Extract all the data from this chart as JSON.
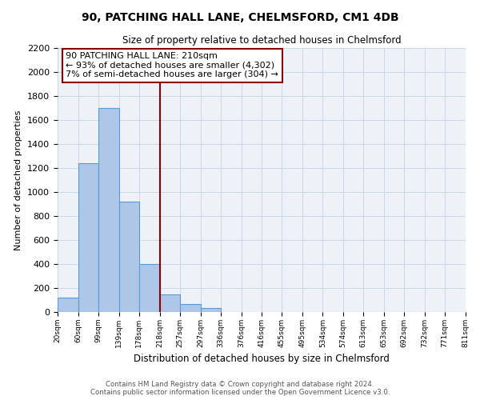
{
  "title": "90, PATCHING HALL LANE, CHELMSFORD, CM1 4DB",
  "subtitle": "Size of property relative to detached houses in Chelmsford",
  "xlabel": "Distribution of detached houses by size in Chelmsford",
  "ylabel": "Number of detached properties",
  "bin_edges": [
    20,
    60,
    99,
    139,
    178,
    218,
    257,
    297,
    336,
    376,
    416,
    455,
    495,
    534,
    574,
    613,
    653,
    692,
    732,
    771,
    811
  ],
  "bin_labels": [
    "20sqm",
    "60sqm",
    "99sqm",
    "139sqm",
    "178sqm",
    "218sqm",
    "257sqm",
    "297sqm",
    "336sqm",
    "376sqm",
    "416sqm",
    "455sqm",
    "495sqm",
    "534sqm",
    "574sqm",
    "613sqm",
    "653sqm",
    "692sqm",
    "732sqm",
    "771sqm",
    "811sqm"
  ],
  "bar_heights": [
    120,
    1240,
    1700,
    920,
    400,
    150,
    70,
    35,
    0,
    0,
    0,
    0,
    0,
    0,
    0,
    0,
    0,
    0,
    0,
    0
  ],
  "bar_color": "#aec6e8",
  "bar_edge_color": "#5b9bd5",
  "property_size": 210,
  "vline_x": 218,
  "vline_color": "#8b0000",
  "annotation_title": "90 PATCHING HALL LANE: 210sqm",
  "annotation_line1": "← 93% of detached houses are smaller (4,302)",
  "annotation_line2": "7% of semi-detached houses are larger (304) →",
  "box_edge_color": "#8b0000",
  "ylim": [
    0,
    2200
  ],
  "yticks": [
    0,
    200,
    400,
    600,
    800,
    1000,
    1200,
    1400,
    1600,
    1800,
    2000,
    2200
  ],
  "footer_line1": "Contains HM Land Registry data © Crown copyright and database right 2024.",
  "footer_line2": "Contains public sector information licensed under the Open Government Licence v3.0.",
  "grid_color": "#c8d8e8",
  "background_color": "#eef2f7"
}
